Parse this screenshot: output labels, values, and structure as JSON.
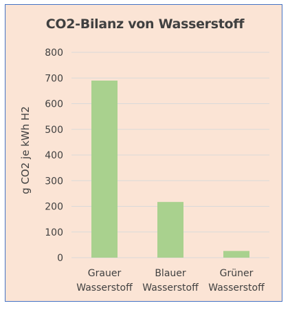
{
  "chart_data": {
    "type": "bar",
    "title": "CO2-Bilanz von Wasserstoff",
    "xlabel": "",
    "ylabel": "g CO2 je kWh H2",
    "categories": [
      [
        "Grauer",
        "Wasserstoff"
      ],
      [
        "Blauer",
        "Wasserstoff"
      ],
      [
        "Grüner",
        "Wasserstoff"
      ]
    ],
    "values": [
      690,
      217,
      26
    ],
    "ylim": [
      0,
      800
    ],
    "yticks": [
      0,
      100,
      200,
      300,
      400,
      500,
      600,
      700,
      800
    ],
    "grid": true,
    "bar_color": "#a9d18e",
    "grid_color": "#d9d9d9",
    "background_color": "#fbe4d5",
    "border_color": "#4472c4"
  }
}
